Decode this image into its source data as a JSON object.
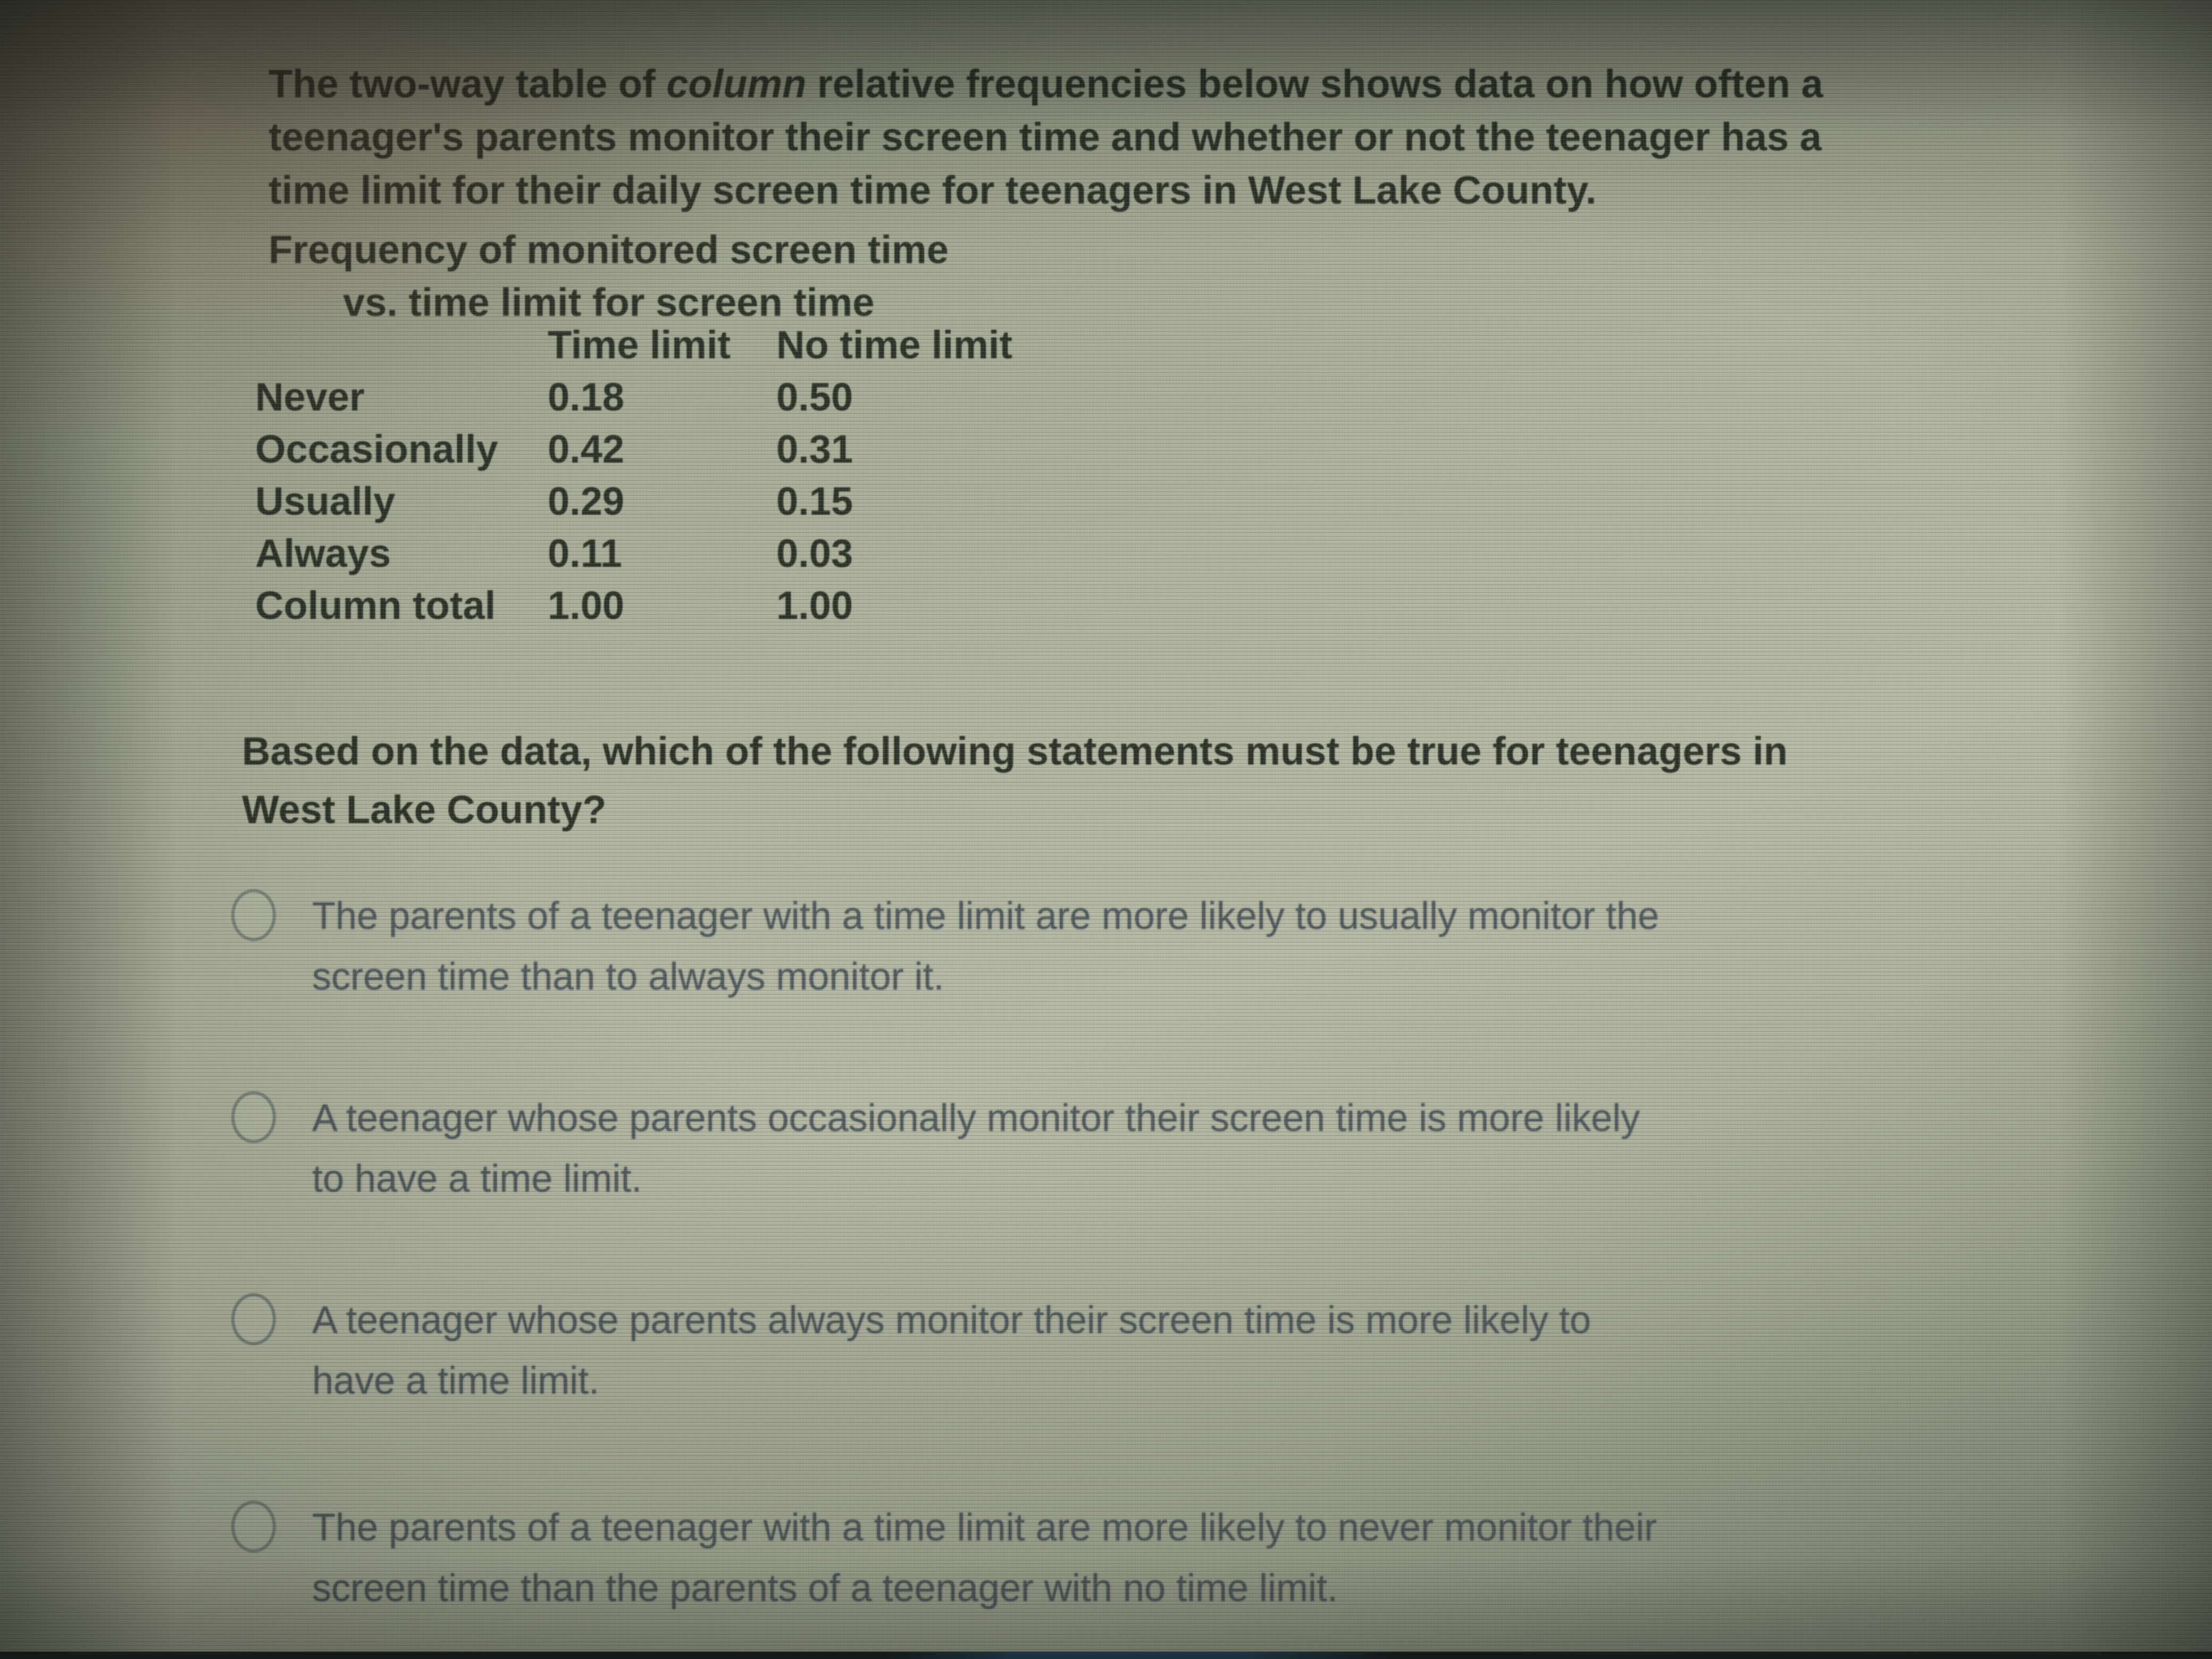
{
  "intro": {
    "l1a": "The two-way table of ",
    "l1_italic": "column",
    "l1b": " relative frequencies below shows data on how often a",
    "l2": "teenager's parents monitor their screen time and whether or not the teenager has a",
    "l3": "time limit for their daily screen time for teenagers in West Lake County."
  },
  "table": {
    "title_line1": "Frequency of monitored screen time",
    "title_line2": "vs. time limit for screen time",
    "col_headers": [
      "Time limit",
      "No time limit"
    ],
    "rows": [
      {
        "label": "Never",
        "values": [
          "0.18",
          "0.50"
        ]
      },
      {
        "label": "Occasionally",
        "values": [
          "0.42",
          "0.31"
        ]
      },
      {
        "label": "Usually",
        "values": [
          "0.29",
          "0.15"
        ]
      },
      {
        "label": "Always",
        "values": [
          "0.11",
          "0.03"
        ]
      },
      {
        "label": "Column total",
        "values": [
          "1.00",
          "1.00"
        ]
      }
    ]
  },
  "question": {
    "l1": "Based on the data, which of the following statements must be true for teenagers in",
    "l2": "West Lake County?"
  },
  "choices": [
    {
      "selected": false,
      "lines": [
        "The parents of a teenager with a time limit are more likely to usually monitor the",
        "screen time than to always monitor it."
      ]
    },
    {
      "selected": false,
      "lines": [
        "A teenager whose parents occasionally monitor their screen time is more likely",
        "to have a time limit."
      ]
    },
    {
      "selected": false,
      "lines": [
        "A teenager whose parents always monitor their screen time is more likely to",
        "have a time limit."
      ]
    },
    {
      "selected": false,
      "lines": [
        "The parents of a teenager with a time limit are more likely to never monitor their",
        "screen time than the parents of a teenager with no time limit."
      ]
    }
  ],
  "colors": {
    "screen_center": "#b4b8a3",
    "screen_edge": "#878c79",
    "text_dark": "#2b3026",
    "text_choice": "#4e585c",
    "radio_border": "#79837a",
    "bottom_bar": "#141a18"
  }
}
